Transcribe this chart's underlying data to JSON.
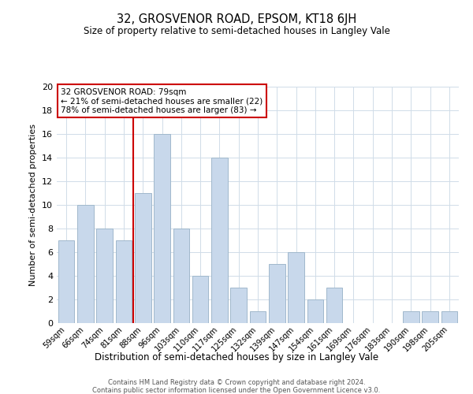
{
  "title": "32, GROSVENOR ROAD, EPSOM, KT18 6JH",
  "subtitle": "Size of property relative to semi-detached houses in Langley Vale",
  "xlabel": "Distribution of semi-detached houses by size in Langley Vale",
  "ylabel": "Number of semi-detached properties",
  "bin_labels": [
    "59sqm",
    "66sqm",
    "74sqm",
    "81sqm",
    "88sqm",
    "96sqm",
    "103sqm",
    "110sqm",
    "117sqm",
    "125sqm",
    "132sqm",
    "139sqm",
    "147sqm",
    "154sqm",
    "161sqm",
    "169sqm",
    "176sqm",
    "183sqm",
    "190sqm",
    "198sqm",
    "205sqm"
  ],
  "bar_heights": [
    7,
    10,
    8,
    7,
    11,
    16,
    8,
    4,
    14,
    3,
    1,
    5,
    6,
    2,
    3,
    0,
    0,
    0,
    1,
    1,
    1
  ],
  "bar_color": "#c8d8eb",
  "bar_edge_color": "#a0b8cc",
  "grid_color": "#d0dce8",
  "property_line_color": "#cc0000",
  "property_line_x": 3.5,
  "annotation_title": "32 GROSVENOR ROAD: 79sqm",
  "annotation_line1": "← 21% of semi-detached houses are smaller (22)",
  "annotation_line2": "78% of semi-detached houses are larger (83) →",
  "annotation_box_color": "#ffffff",
  "annotation_box_edge": "#cc0000",
  "ylim": [
    0,
    20
  ],
  "yticks": [
    0,
    2,
    4,
    6,
    8,
    10,
    12,
    14,
    16,
    18,
    20
  ],
  "footer_line1": "Contains HM Land Registry data © Crown copyright and database right 2024.",
  "footer_line2": "Contains public sector information licensed under the Open Government Licence v3.0."
}
